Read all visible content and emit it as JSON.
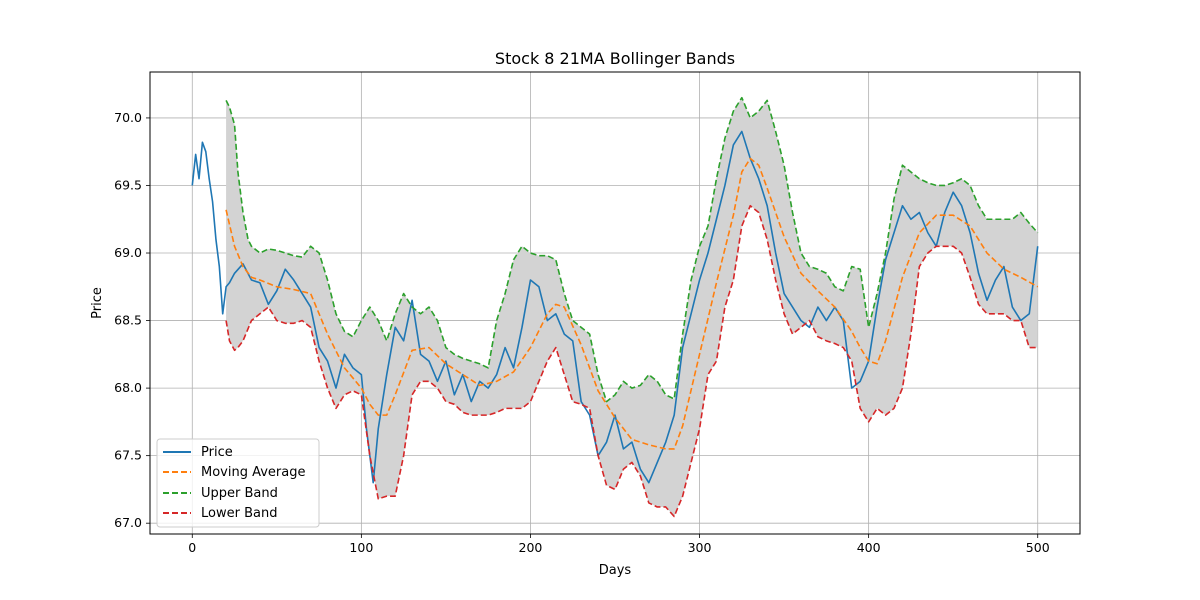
{
  "chart_data": {
    "type": "line",
    "title": "Stock 8 21MA Bollinger Bands",
    "xlabel": "Days",
    "ylabel": "Price",
    "xlim": [
      -25,
      525
    ],
    "ylim": [
      66.92,
      70.34
    ],
    "xticks": [
      0,
      100,
      200,
      300,
      400,
      500
    ],
    "yticks": [
      67.0,
      67.5,
      68.0,
      68.5,
      69.0,
      69.5,
      70.0
    ],
    "grid": true,
    "legend_position": "lower-left",
    "band_fill_color": "#d3d3d3",
    "series": [
      {
        "name": "Price",
        "color": "#1f77b4",
        "style": "solid",
        "x": [
          0,
          2,
          4,
          6,
          8,
          10,
          12,
          14,
          16,
          18,
          20,
          22,
          25,
          30,
          35,
          40,
          45,
          50,
          55,
          60,
          65,
          70,
          75,
          80,
          85,
          90,
          95,
          100,
          103,
          105,
          107,
          110,
          115,
          120,
          125,
          130,
          135,
          140,
          145,
          150,
          155,
          160,
          165,
          170,
          175,
          180,
          185,
          190,
          195,
          200,
          205,
          210,
          215,
          220,
          225,
          230,
          235,
          240,
          245,
          250,
          255,
          260,
          265,
          270,
          275,
          280,
          285,
          290,
          295,
          300,
          305,
          310,
          315,
          320,
          325,
          330,
          335,
          340,
          345,
          350,
          355,
          360,
          365,
          370,
          375,
          380,
          385,
          390,
          395,
          400,
          405,
          410,
          415,
          420,
          425,
          430,
          435,
          440,
          445,
          450,
          455,
          460,
          465,
          470,
          475,
          480,
          485,
          490,
          495,
          500
        ],
        "y": [
          69.5,
          69.73,
          69.55,
          69.82,
          69.75,
          69.55,
          69.38,
          69.1,
          68.9,
          68.55,
          68.75,
          68.78,
          68.85,
          68.92,
          68.8,
          68.78,
          68.62,
          68.72,
          68.88,
          68.8,
          68.7,
          68.6,
          68.3,
          68.2,
          68.0,
          68.25,
          68.15,
          68.1,
          67.7,
          67.5,
          67.3,
          67.7,
          68.1,
          68.45,
          68.35,
          68.65,
          68.25,
          68.2,
          68.05,
          68.2,
          67.95,
          68.1,
          67.9,
          68.05,
          68.0,
          68.1,
          68.3,
          68.15,
          68.45,
          68.8,
          68.75,
          68.5,
          68.55,
          68.4,
          68.35,
          67.9,
          67.8,
          67.5,
          67.6,
          67.8,
          67.55,
          67.6,
          67.4,
          67.3,
          67.45,
          67.6,
          67.8,
          68.3,
          68.55,
          68.8,
          69.0,
          69.25,
          69.5,
          69.8,
          69.9,
          69.7,
          69.55,
          69.35,
          69.0,
          68.7,
          68.6,
          68.5,
          68.45,
          68.6,
          68.5,
          68.6,
          68.5,
          68.0,
          68.05,
          68.2,
          68.6,
          68.95,
          69.15,
          69.35,
          69.25,
          69.3,
          69.15,
          69.05,
          69.3,
          69.45,
          69.35,
          69.15,
          68.85,
          68.65,
          68.8,
          68.9,
          68.6,
          68.5,
          68.55,
          69.05
        ]
      },
      {
        "name": "Moving Average",
        "color": "#ff7f0e",
        "style": "dashed",
        "x": [
          20,
          25,
          30,
          35,
          40,
          50,
          60,
          70,
          80,
          90,
          100,
          105,
          110,
          115,
          120,
          130,
          140,
          150,
          160,
          170,
          180,
          190,
          200,
          210,
          215,
          220,
          230,
          240,
          250,
          260,
          270,
          280,
          285,
          290,
          300,
          310,
          320,
          325,
          330,
          335,
          340,
          350,
          360,
          370,
          380,
          390,
          395,
          400,
          405,
          410,
          420,
          430,
          440,
          450,
          460,
          470,
          480,
          490,
          500
        ],
        "y": [
          69.32,
          69.05,
          68.9,
          68.82,
          68.8,
          68.75,
          68.73,
          68.7,
          68.4,
          68.15,
          68.0,
          67.88,
          67.8,
          67.8,
          67.95,
          68.28,
          68.3,
          68.18,
          68.1,
          68.02,
          68.05,
          68.12,
          68.3,
          68.55,
          68.62,
          68.6,
          68.32,
          67.98,
          67.78,
          67.62,
          67.58,
          67.55,
          67.55,
          67.72,
          68.25,
          68.78,
          69.28,
          69.6,
          69.7,
          69.65,
          69.48,
          69.12,
          68.85,
          68.72,
          68.6,
          68.42,
          68.3,
          68.2,
          68.18,
          68.35,
          68.82,
          69.15,
          69.28,
          69.28,
          69.2,
          69.0,
          68.88,
          68.82,
          68.75
        ]
      },
      {
        "name": "Upper Band",
        "color": "#2ca02c",
        "style": "dashed",
        "x": [
          20,
          22,
          25,
          27,
          30,
          33,
          35,
          40,
          45,
          50,
          55,
          60,
          65,
          70,
          75,
          80,
          85,
          90,
          95,
          100,
          105,
          110,
          115,
          120,
          125,
          130,
          135,
          140,
          145,
          150,
          155,
          160,
          165,
          170,
          175,
          180,
          185,
          190,
          195,
          200,
          205,
          210,
          215,
          220,
          225,
          230,
          235,
          240,
          245,
          250,
          255,
          260,
          265,
          270,
          275,
          280,
          285,
          290,
          295,
          300,
          305,
          310,
          315,
          320,
          325,
          330,
          335,
          340,
          345,
          350,
          355,
          360,
          365,
          370,
          375,
          380,
          385,
          390,
          395,
          400,
          405,
          410,
          415,
          420,
          425,
          430,
          435,
          440,
          445,
          450,
          455,
          460,
          465,
          470,
          475,
          480,
          485,
          490,
          495,
          500
        ],
        "y": [
          70.13,
          70.08,
          69.95,
          69.6,
          69.3,
          69.1,
          69.05,
          69.0,
          69.03,
          69.02,
          69.0,
          68.98,
          68.97,
          69.05,
          69.0,
          68.8,
          68.55,
          68.42,
          68.38,
          68.5,
          68.6,
          68.5,
          68.35,
          68.55,
          68.7,
          68.6,
          68.55,
          68.6,
          68.5,
          68.3,
          68.25,
          68.22,
          68.2,
          68.18,
          68.15,
          68.5,
          68.7,
          68.95,
          69.05,
          69.0,
          68.98,
          68.98,
          68.95,
          68.7,
          68.5,
          68.45,
          68.4,
          68.1,
          67.9,
          67.95,
          68.05,
          68.0,
          68.02,
          68.1,
          68.05,
          67.95,
          67.92,
          68.4,
          68.8,
          69.05,
          69.2,
          69.55,
          69.85,
          70.05,
          70.15,
          70.0,
          70.05,
          70.13,
          69.9,
          69.65,
          69.3,
          69.0,
          68.9,
          68.88,
          68.85,
          68.75,
          68.72,
          68.9,
          68.88,
          68.45,
          68.7,
          69.0,
          69.4,
          69.65,
          69.6,
          69.55,
          69.52,
          69.5,
          69.5,
          69.52,
          69.55,
          69.5,
          69.35,
          69.25,
          69.25,
          69.25,
          69.25,
          69.3,
          69.22,
          69.15
        ]
      },
      {
        "name": "Lower Band",
        "color": "#d62728",
        "style": "dashed",
        "x": [
          20,
          22,
          25,
          27,
          30,
          35,
          40,
          45,
          50,
          55,
          60,
          65,
          70,
          75,
          80,
          85,
          90,
          95,
          100,
          105,
          110,
          115,
          120,
          125,
          130,
          135,
          140,
          145,
          150,
          155,
          160,
          165,
          170,
          175,
          180,
          185,
          190,
          195,
          200,
          205,
          210,
          215,
          220,
          225,
          230,
          235,
          240,
          245,
          250,
          255,
          260,
          265,
          270,
          275,
          280,
          285,
          290,
          295,
          300,
          305,
          310,
          315,
          320,
          325,
          330,
          335,
          340,
          345,
          350,
          355,
          360,
          365,
          370,
          375,
          380,
          385,
          390,
          395,
          400,
          405,
          410,
          415,
          420,
          425,
          430,
          435,
          440,
          445,
          450,
          455,
          460,
          465,
          470,
          475,
          480,
          485,
          490,
          495,
          500
        ],
        "y": [
          68.5,
          68.35,
          68.28,
          68.3,
          68.35,
          68.5,
          68.55,
          68.6,
          68.5,
          68.48,
          68.48,
          68.5,
          68.45,
          68.2,
          68.0,
          67.85,
          67.95,
          67.98,
          67.95,
          67.5,
          67.18,
          67.2,
          67.2,
          67.5,
          67.95,
          68.05,
          68.05,
          68.0,
          67.9,
          67.88,
          67.82,
          67.8,
          67.8,
          67.8,
          67.82,
          67.85,
          67.85,
          67.85,
          67.9,
          68.05,
          68.2,
          68.3,
          68.1,
          67.9,
          67.88,
          67.85,
          67.5,
          67.28,
          67.25,
          67.4,
          67.45,
          67.35,
          67.15,
          67.12,
          67.12,
          67.05,
          67.2,
          67.45,
          67.7,
          68.1,
          68.2,
          68.6,
          68.8,
          69.2,
          69.35,
          69.3,
          69.1,
          68.8,
          68.55,
          68.4,
          68.45,
          68.5,
          68.38,
          68.35,
          68.33,
          68.3,
          68.2,
          67.85,
          67.75,
          67.85,
          67.8,
          67.85,
          68.0,
          68.4,
          68.9,
          69.0,
          69.05,
          69.05,
          69.05,
          69.0,
          68.82,
          68.62,
          68.55,
          68.55,
          68.55,
          68.5,
          68.5,
          68.3,
          68.3
        ]
      }
    ]
  }
}
